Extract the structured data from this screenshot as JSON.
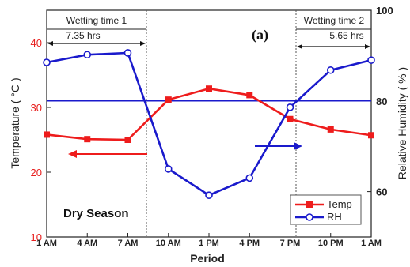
{
  "chart_data": {
    "type": "line",
    "categories": [
      "1 AM",
      "4 AM",
      "7 AM",
      "10 AM",
      "1 PM",
      "4 PM",
      "7 PM",
      "10 PM",
      "1 AM"
    ],
    "xlabel": "Period",
    "ylabel": "Temperature ( °C )",
    "ylabel_right": "Relative Humidity ( % )",
    "ylim": [
      10,
      45
    ],
    "ylim_right": [
      50,
      100
    ],
    "yticks": [
      10,
      20,
      30,
      40
    ],
    "yticks_right": [
      60,
      80,
      100
    ],
    "panel_label": "(a)",
    "season_label": "Dry Season",
    "grid": false,
    "legend_position": "bottom-right",
    "series": [
      {
        "name": "Temp",
        "axis": "left",
        "color": "#ee1c1c",
        "marker": "square",
        "values": [
          25.8,
          25.1,
          25.0,
          31.2,
          32.9,
          31.9,
          28.2,
          26.6,
          25.7
        ]
      },
      {
        "name": "RH",
        "axis": "right",
        "color": "#1a1acc",
        "marker": "circle",
        "values": [
          88.5,
          90.2,
          90.6,
          65.0,
          59.2,
          63.0,
          78.6,
          86.8,
          89.0
        ]
      }
    ],
    "reference_line_rh": 80,
    "annotations": [
      {
        "id": "wt1",
        "title": "Wetting time 1",
        "value": "7.35 hrs"
      },
      {
        "id": "wt2",
        "title": "Wetting time 2",
        "value": "5.65 hrs"
      }
    ]
  }
}
